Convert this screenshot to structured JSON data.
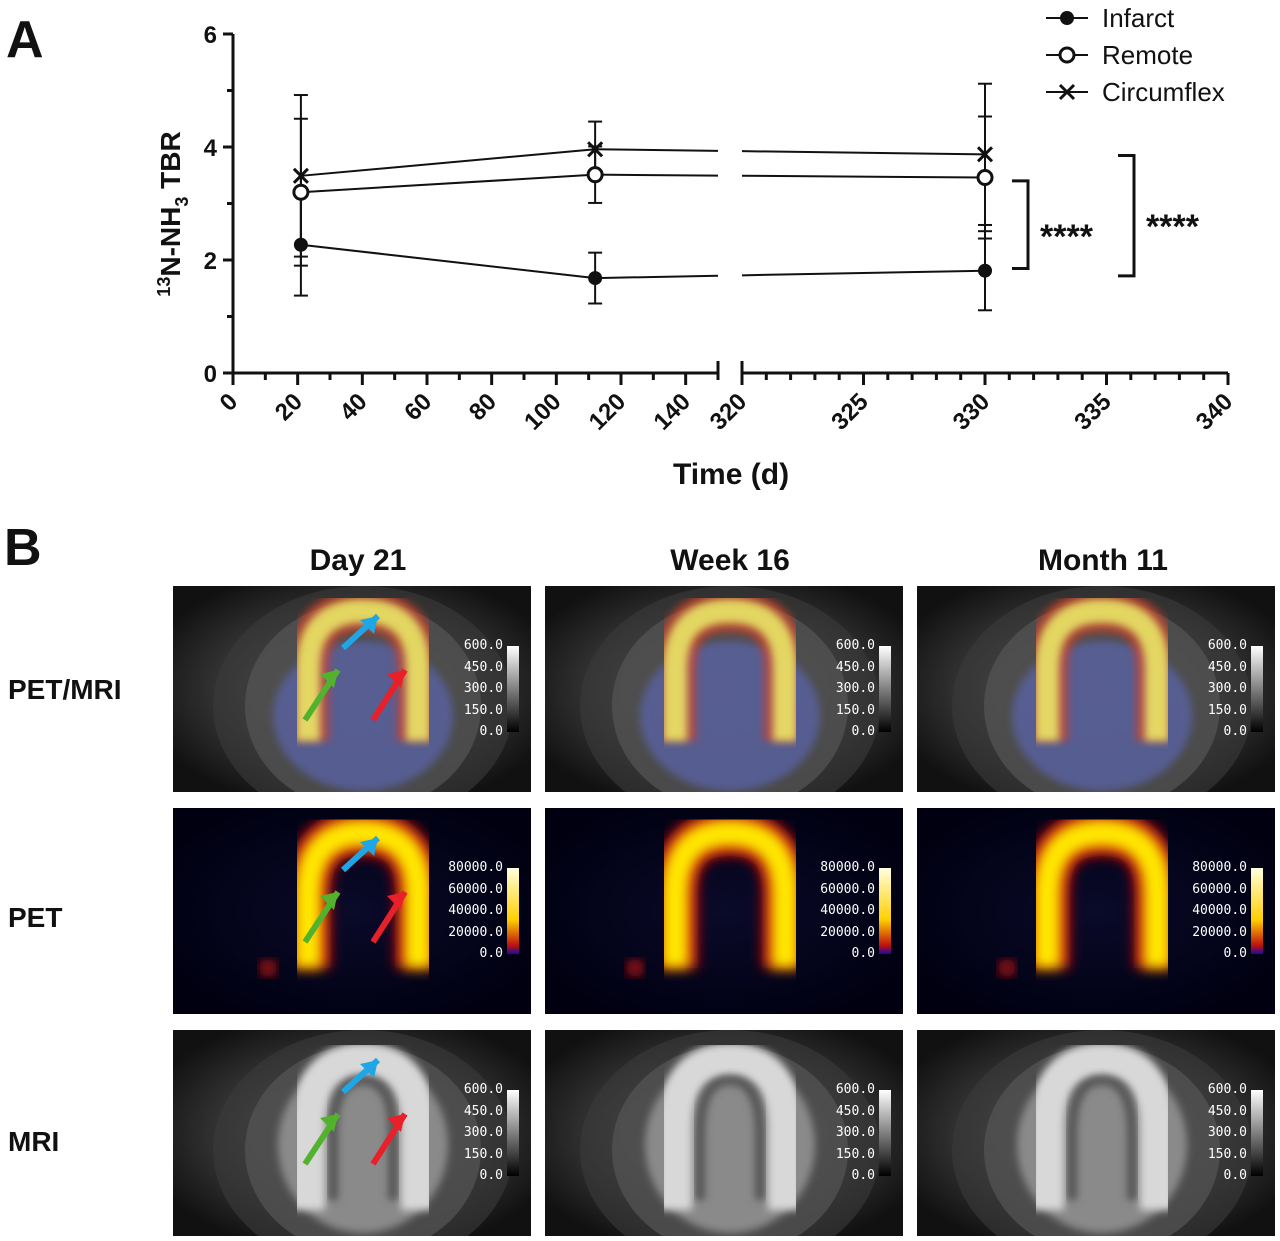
{
  "panel_a_label": "A",
  "panel_b_label": "B",
  "chart_data": {
    "type": "line",
    "xlabel": "Time (d)",
    "ylabel_prefix_sup": "13",
    "ylabel_main": "N-NH",
    "ylabel_sub": "3",
    "ylabel_suffix": " TBR",
    "ylim": [
      0,
      6
    ],
    "yticks": [
      "0",
      "2",
      "4",
      "6"
    ],
    "x_broken_axis": true,
    "x_segments": [
      {
        "range": [
          0,
          150
        ],
        "ticks": [
          "0",
          "20",
          "40",
          "60",
          "80",
          "100",
          "120",
          "140"
        ]
      },
      {
        "range": [
          320,
          340
        ],
        "ticks": [
          "320",
          "325",
          "330",
          "335",
          "340"
        ]
      }
    ],
    "x": [
      21,
      112,
      330
    ],
    "series": [
      {
        "name": "Infarct",
        "marker": "filled-circle",
        "values": [
          2.27,
          1.68,
          1.81
        ],
        "err": [
          0.9,
          0.45,
          0.7
        ]
      },
      {
        "name": "Remote",
        "marker": "open-circle",
        "values": [
          3.2,
          3.51,
          3.46
        ],
        "err": [
          1.3,
          0.5,
          1.08
        ]
      },
      {
        "name": "Circumflex",
        "marker": "x",
        "values": [
          3.49,
          3.96,
          3.87
        ],
        "err": [
          1.43,
          0.49,
          1.25
        ]
      }
    ],
    "legend_position": "top-right",
    "significance": [
      "****",
      "****"
    ]
  },
  "panel_b": {
    "columns": [
      "Day 21",
      "Week 16",
      "Month 11"
    ],
    "rows": [
      "PET/MRI",
      "PET",
      "MRI"
    ],
    "mri_scale_labels": [
      "600.0",
      "450.0",
      "300.0",
      "150.0",
      "0.0"
    ],
    "pet_scale_labels": [
      "80000.0",
      "60000.0",
      "40000.0",
      "20000.0",
      "0.0"
    ],
    "arrow_colors": {
      "blue": "#1ea6e6",
      "green": "#52b22e",
      "red": "#e8202a"
    }
  }
}
